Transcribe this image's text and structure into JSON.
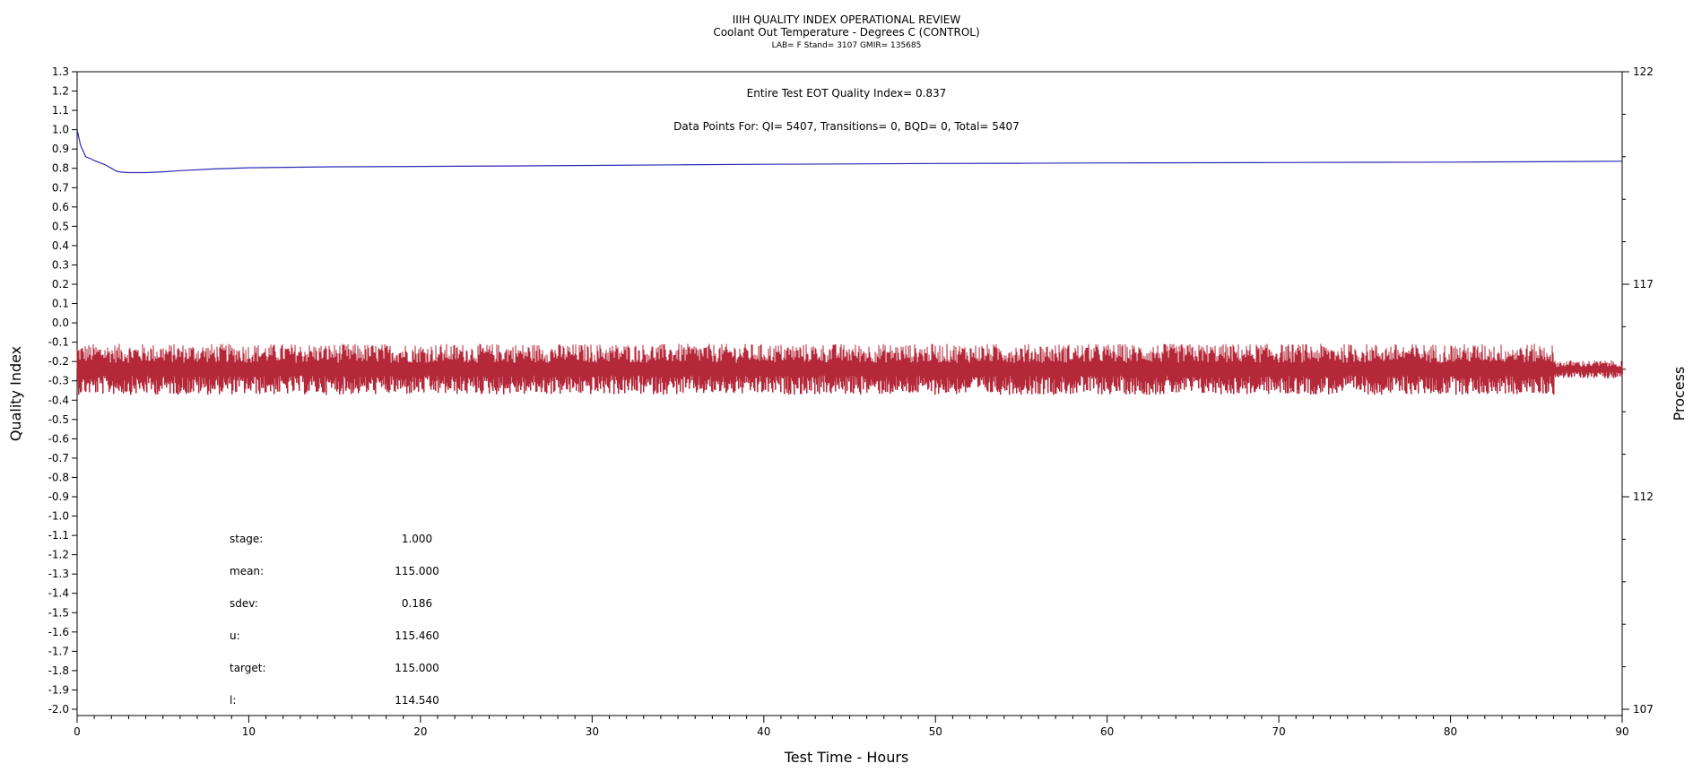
{
  "chart_data": {
    "type": "line",
    "title": "IIIH QUALITY INDEX OPERATIONAL REVIEW",
    "subtitle": "Coolant Out Temperature - Degrees C (CONTROL)",
    "subtitle2": "LAB= F Stand= 3107 GMIR= 135685",
    "xlabel": "Test Time - Hours",
    "ylabel": "Quality Index",
    "y2label": "Process",
    "xlim": [
      0,
      90
    ],
    "ylim": [
      -2.0,
      1.3
    ],
    "y2lim": [
      107,
      122
    ],
    "x_ticks": [
      0,
      10,
      20,
      30,
      40,
      50,
      60,
      70,
      80,
      90
    ],
    "y_ticks": [
      "1.3",
      "1.2",
      "1.1",
      "1.0",
      "0.9",
      "0.8",
      "0.7",
      "0.6",
      "0.5",
      "0.4",
      "0.3",
      "0.2",
      "0.1",
      "0.0",
      "-0.1",
      "-0.2",
      "-0.3",
      "-0.4",
      "-0.5",
      "-0.6",
      "-0.7",
      "-0.8",
      "-0.9",
      "-1.0",
      "-1.1",
      "-1.2",
      "-1.3",
      "-1.4",
      "-1.5",
      "-1.6",
      "-1.7",
      "-1.8",
      "-1.9",
      "-2.0"
    ],
    "y2_ticks": [
      122,
      117,
      112,
      107
    ],
    "annotation_qi": "Entire Test EOT Quality Index=   0.837",
    "annotation_points": "Data Points For: QI=  5407, Transitions=     0, BQD=     0, Total=  5407",
    "series": [
      {
        "axis": "left",
        "color": "#2b2bb5",
        "x": [
          0,
          0.2,
          0.5,
          0.8,
          1.0,
          1.3,
          1.6,
          2.0,
          2.3,
          2.6,
          3.0,
          4.0,
          5.0,
          6.0,
          8.0,
          10.0,
          15.0,
          20.0,
          25.0,
          30.0,
          35.0,
          40.0,
          45.0,
          50.0,
          55.0,
          60.0,
          65.0,
          70.0,
          75.0,
          80.0,
          85.0,
          90.0
        ],
        "values": [
          1.0,
          0.92,
          0.86,
          0.85,
          0.84,
          0.83,
          0.82,
          0.8,
          0.785,
          0.78,
          0.778,
          0.778,
          0.782,
          0.788,
          0.797,
          0.803,
          0.808,
          0.81,
          0.812,
          0.815,
          0.818,
          0.821,
          0.823,
          0.825,
          0.826,
          0.828,
          0.829,
          0.83,
          0.831,
          0.832,
          0.834,
          0.837
        ]
      },
      {
        "axis": "right",
        "color": "#b01c2e",
        "pattern": "noise",
        "x_range": [
          0,
          90
        ],
        "center": 115.0,
        "spread": 0.6
      }
    ],
    "stats": [
      {
        "label": "stage:",
        "value": "1.000"
      },
      {
        "label": "mean:",
        "value": "115.000"
      },
      {
        "label": "sdev:",
        "value": "0.186"
      },
      {
        "label": "u:",
        "value": "115.460"
      },
      {
        "label": "target:",
        "value": "115.000"
      },
      {
        "label": "l:",
        "value": "114.540"
      }
    ]
  }
}
